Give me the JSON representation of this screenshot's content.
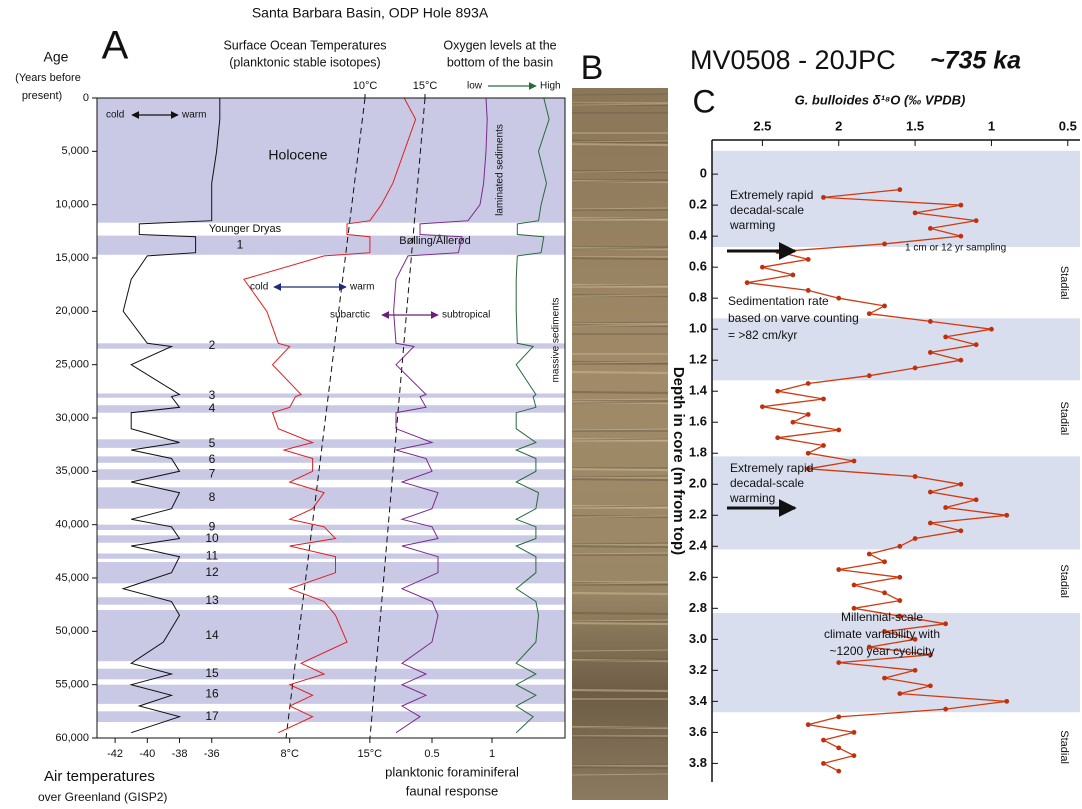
{
  "chart_data": [
    {
      "type": "stratigraphic",
      "panel_label": "A",
      "title": "Santa Barbara Basin, ODP Hole 893A",
      "y_label": [
        "Age",
        "(Years before",
        "present)"
      ],
      "ylim": [
        0,
        60000
      ],
      "yticks": [
        0,
        {
          "value": 5000,
          "label": "5,000"
        },
        {
          "value": 10000,
          "label": "10,000"
        },
        {
          "value": 15000,
          "label": "15,000"
        },
        {
          "value": 20000,
          "label": "20,000"
        },
        {
          "value": 25000,
          "label": "25,000"
        },
        {
          "value": 30000,
          "label": "30,000"
        },
        {
          "value": 35000,
          "label": "35,000"
        },
        {
          "value": 40000,
          "label": "40,000"
        },
        {
          "value": 45000,
          "label": "45,000"
        },
        {
          "value": 50000,
          "label": "50,000"
        },
        {
          "value": 55000,
          "label": "55,000"
        },
        {
          "value": 60000,
          "label": "60,000"
        }
      ],
      "holocene": {
        "label": "Holocene",
        "range": [
          0,
          11700
        ]
      },
      "younger_dryas": {
        "label": "Younger Dryas",
        "range": [
          11700,
          12900
        ]
      },
      "interstadials": [
        {
          "label": "1",
          "name": "Bølling/Ållerød",
          "range": [
            12900,
            14700
          ]
        },
        {
          "label": "2",
          "range": [
            23000,
            23500
          ]
        },
        {
          "label": "3",
          "range": [
            27700,
            28100
          ]
        },
        {
          "label": "4",
          "range": [
            28800,
            29500
          ]
        },
        {
          "label": "5",
          "range": [
            32000,
            32800
          ]
        },
        {
          "label": "6",
          "range": [
            33600,
            34200
          ]
        },
        {
          "label": "7",
          "range": [
            34800,
            35800
          ]
        },
        {
          "label": "8",
          "range": [
            36500,
            38500
          ]
        },
        {
          "label": "9",
          "range": [
            40000,
            40500
          ]
        },
        {
          "label": "10",
          "range": [
            41000,
            41700
          ]
        },
        {
          "label": "11",
          "range": [
            42700,
            43200
          ]
        },
        {
          "label": "12",
          "range": [
            43500,
            45500
          ]
        },
        {
          "label": "13",
          "range": [
            46800,
            47500
          ]
        },
        {
          "label": "14",
          "range": [
            48000,
            52800
          ]
        },
        {
          "label": "15",
          "range": [
            53500,
            54500
          ]
        },
        {
          "label": "16",
          "range": [
            55000,
            56800
          ]
        },
        {
          "label": "17",
          "range": [
            57500,
            58500
          ]
        }
      ],
      "ages": [
        0,
        2000,
        5000,
        8000,
        10000,
        11500,
        11800,
        12800,
        13000,
        14500,
        14800,
        17000,
        20000,
        23000,
        23300,
        25000,
        27800,
        28000,
        29000,
        29500,
        31000,
        32300,
        33000,
        33800,
        35000,
        36000,
        37000,
        38500,
        39500,
        40200,
        41300,
        42000,
        43000,
        44500,
        46000,
        47200,
        48500,
        51000,
        53000,
        54000,
        55000,
        56000,
        57000,
        58000,
        59500
      ],
      "tracks": [
        {
          "axis_label": [
            "Air temperatures",
            "over Greenland (GISP2)"
          ],
          "xlim": [
            -43,
            -33.5
          ],
          "xticks": [
            -42,
            -40,
            -38,
            -36
          ],
          "color": "#111111",
          "direction_labels": [
            "cold",
            "warm"
          ],
          "values": [
            -35.5,
            -35.5,
            -35.7,
            -36,
            -36,
            -36,
            -40.5,
            -40.5,
            -37,
            -37,
            -40,
            -41,
            -41.5,
            -40,
            -38.5,
            -41,
            -38,
            -38.5,
            -38,
            -41,
            -41,
            -38,
            -41,
            -38.5,
            -38,
            -41,
            -38,
            -38.5,
            -41,
            -38.5,
            -38,
            -41,
            -38,
            -38.5,
            -41.5,
            -38.5,
            -38,
            -39,
            -41,
            -38.5,
            -41,
            -38.5,
            -40.5,
            -38,
            -41
          ]
        },
        {
          "header": [
            "Surface Ocean Temperatures",
            "(planktonic stable isotopes)"
          ],
          "xlim": [
            2,
            22
          ],
          "xticks": [
            {
              "value": 8,
              "label": "8°C"
            },
            {
              "value": 15,
              "label": "15°C"
            }
          ],
          "x2lim": [
            2,
            22
          ],
          "x2ticks": [
            {
              "value": 10,
              "label": "10°C"
            },
            {
              "value": 15,
              "label": "15°C"
            }
          ],
          "color": "#e02020",
          "direction_labels": [
            "cold",
            "warm"
          ],
          "values": [
            18,
            19,
            18,
            17,
            16,
            15,
            13,
            13,
            15,
            15,
            11,
            4,
            6,
            7,
            8,
            6.5,
            9,
            8.5,
            8,
            6.5,
            7,
            10,
            7.5,
            10,
            10,
            8,
            11,
            10,
            8,
            11,
            12,
            8,
            12,
            12,
            8,
            11,
            12,
            13,
            9,
            11,
            8,
            10,
            8,
            10,
            7
          ]
        },
        {
          "axis_label": [
            "planktonic foraminiferal",
            "faunal response"
          ],
          "xlim": [
            0,
            1.2
          ],
          "xticks": [
            0.5,
            1
          ],
          "color": "#7b2a8c",
          "direction_labels": [
            "subarctic",
            "subtropical"
          ],
          "values": [
            0.95,
            0.96,
            0.95,
            0.93,
            0.9,
            0.8,
            0.4,
            0.4,
            0.75,
            0.72,
            0.3,
            0.2,
            0.18,
            0.2,
            0.35,
            0.2,
            0.45,
            0.4,
            0.45,
            0.2,
            0.2,
            0.5,
            0.2,
            0.45,
            0.5,
            0.25,
            0.55,
            0.5,
            0.25,
            0.5,
            0.55,
            0.25,
            0.55,
            0.55,
            0.25,
            0.5,
            0.55,
            0.5,
            0.25,
            0.45,
            0.25,
            0.45,
            0.25,
            0.4,
            0.2
          ]
        },
        {
          "header": [
            "Oxygen levels at the",
            "bottom of the basin"
          ],
          "xlim": [
            0,
            1
          ],
          "scale_labels": [
            "low",
            "High"
          ],
          "color": "#2a6a3a",
          "sediment_labels": [
            "laminated sediments",
            "massive sediments"
          ],
          "values": [
            0.6,
            0.7,
            0.5,
            0.65,
            0.55,
            0.5,
            0.1,
            0.1,
            0.6,
            0.55,
            0.1,
            0.08,
            0.08,
            0.1,
            0.4,
            0.08,
            0.45,
            0.4,
            0.45,
            0.08,
            0.08,
            0.45,
            0.08,
            0.45,
            0.45,
            0.08,
            0.5,
            0.45,
            0.08,
            0.45,
            0.45,
            0.08,
            0.45,
            0.45,
            0.08,
            0.45,
            0.5,
            0.45,
            0.08,
            0.45,
            0.08,
            0.45,
            0.08,
            0.4,
            0.08
          ]
        }
      ]
    },
    {
      "type": "profile",
      "panel_label": "C",
      "title": "MV0508 - 20JPC",
      "age_label": "~735 ka",
      "x_label": "G. bulloides δ¹⁸O (‰ VPDB)",
      "y_label": "Depth in core (m from top)",
      "xlim": [
        2.83,
        0.42
      ],
      "xticks": [
        2.5,
        2,
        1.5,
        1,
        0.5
      ],
      "ylim": [
        -0.22,
        3.92
      ],
      "yticks": [
        0,
        0.2,
        0.4,
        0.6,
        0.8,
        {
          "value": 1,
          "label": "1.0"
        },
        1.2,
        1.4,
        1.6,
        1.8,
        {
          "value": 2,
          "label": "2.0"
        },
        2.2,
        2.4,
        2.6,
        2.8,
        {
          "value": 3,
          "label": "3.0"
        },
        3.2,
        3.4,
        3.6,
        3.8
      ],
      "warm_intervals": [
        [
          -0.15,
          0.47
        ],
        [
          0.93,
          1.33
        ],
        [
          1.82,
          2.42
        ],
        [
          2.83,
          3.47
        ]
      ],
      "stadial_labels": [
        "Stadial",
        "Stadial",
        "Stadial",
        "Stadial"
      ],
      "annotations": [
        [
          "Extremely rapid",
          "decadal-scale",
          "warming"
        ],
        [
          "1 cm or 12 yr sampling"
        ],
        [
          "Sedimentation rate",
          "based on varve counting",
          "= >82 cm/kyr"
        ],
        [
          "Extremely rapid",
          "decadal-scale",
          "warming"
        ],
        [
          "Millennial-scale",
          "climate variability with",
          "~1200 year cyclicity"
        ]
      ],
      "color": "#d03a10",
      "depths": [
        0.1,
        0.15,
        0.2,
        0.25,
        0.3,
        0.35,
        0.4,
        0.45,
        0.5,
        0.55,
        0.6,
        0.65,
        0.7,
        0.75,
        0.8,
        0.85,
        0.9,
        0.95,
        1,
        1.05,
        1.1,
        1.15,
        1.2,
        1.25,
        1.3,
        1.35,
        1.4,
        1.45,
        1.5,
        1.55,
        1.6,
        1.65,
        1.7,
        1.75,
        1.8,
        1.85,
        1.9,
        1.95,
        2,
        2.05,
        2.1,
        2.15,
        2.2,
        2.25,
        2.3,
        2.35,
        2.4,
        2.45,
        2.5,
        2.55,
        2.6,
        2.65,
        2.7,
        2.75,
        2.8,
        2.85,
        2.9,
        2.95,
        3,
        3.05,
        3.1,
        3.15,
        3.2,
        3.25,
        3.3,
        3.35,
        3.4,
        3.45,
        3.5,
        3.55,
        3.6,
        3.65,
        3.7,
        3.75,
        3.8,
        3.85
      ],
      "values": [
        1.6,
        2.1,
        1.2,
        1.5,
        1.1,
        1.4,
        1.2,
        1.7,
        2.4,
        2.2,
        2.5,
        2.3,
        2.6,
        2.2,
        2,
        1.7,
        1.8,
        1.4,
        1,
        1.3,
        1.1,
        1.4,
        1.2,
        1.5,
        1.8,
        2.2,
        2.4,
        2.1,
        2.5,
        2.2,
        2.3,
        2,
        2.4,
        2.1,
        2.2,
        1.9,
        2.2,
        1.5,
        1.2,
        1.4,
        1.1,
        1.3,
        0.9,
        1.4,
        1.2,
        1.5,
        1.6,
        1.8,
        1.7,
        2,
        1.6,
        1.9,
        1.7,
        1.6,
        1.9,
        1.6,
        1.3,
        1.7,
        1.5,
        1.8,
        1.4,
        2,
        1.5,
        1.7,
        1.4,
        1.6,
        0.9,
        1.3,
        2,
        2.2,
        1.9,
        2.1,
        2,
        1.9,
        2.1,
        2
      ]
    }
  ],
  "panel_b": {
    "label": "B"
  }
}
